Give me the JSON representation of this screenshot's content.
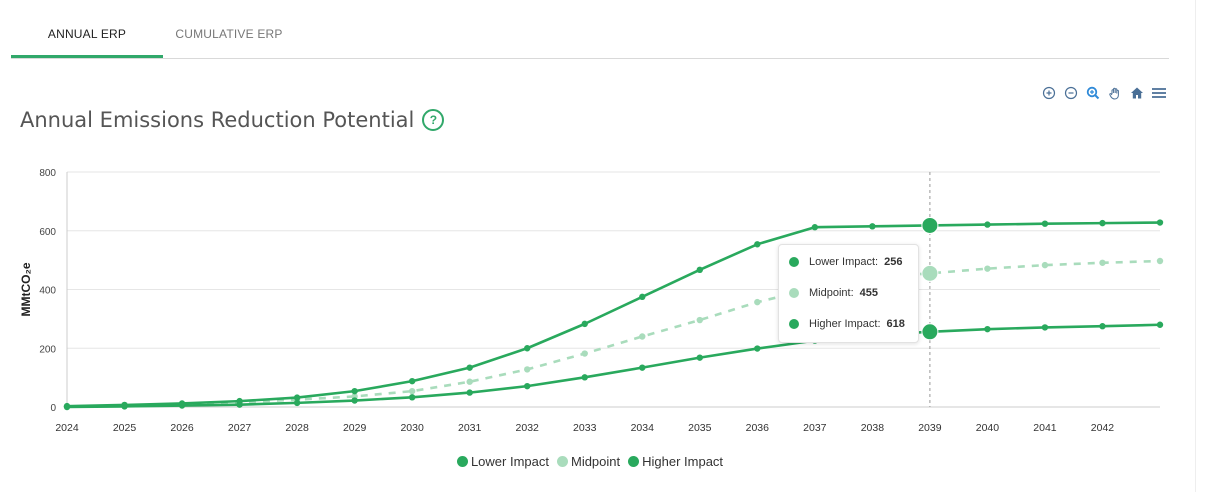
{
  "tabs": [
    {
      "label": "ANNUAL ERP",
      "active": true
    },
    {
      "label": "CUMULATIVE ERP",
      "active": false
    }
  ],
  "toolbar": [
    "zoom-in-icon",
    "zoom-out-icon",
    "selection-zoom-icon",
    "pan-hand-icon",
    "home-reset-icon",
    "menu-icon"
  ],
  "colors": {
    "lower": "#29a95d",
    "midpoint": "#a9dcbc",
    "higher": "#29a95d",
    "accent": "#31a86a",
    "grid": "#e6e6e6"
  },
  "tooltip": {
    "rows": [
      {
        "label": "Lower Impact:",
        "value": "256"
      },
      {
        "label": "Midpoint:",
        "value": "455"
      },
      {
        "label": "Higher Impact:",
        "value": "618"
      }
    ]
  },
  "chart_data": {
    "type": "line",
    "title": "Annual Emissions Reduction Potential",
    "xlabel": "",
    "ylabel": "MMtCO₂e",
    "x": [
      2024,
      2025,
      2026,
      2027,
      2028,
      2029,
      2030,
      2031,
      2032,
      2033,
      2034,
      2035,
      2036,
      2037,
      2038,
      2039,
      2040,
      2041,
      2042,
      2043
    ],
    "x_tick_labels": [
      "2024",
      "2025",
      "2026",
      "2027",
      "2028",
      "2029",
      "2030",
      "2031",
      "2032",
      "2033",
      "2034",
      "2035",
      "2036",
      "2037",
      "2038",
      "2039",
      "2040",
      "2041",
      "2042"
    ],
    "y_ticks": [
      0,
      200,
      400,
      600,
      800
    ],
    "ylim": [
      0,
      800
    ],
    "grid": true,
    "legend": "bottom-center",
    "series": [
      {
        "name": "Lower Impact",
        "style": "solid",
        "values": [
          0,
          2,
          5,
          8,
          14,
          22,
          33,
          49,
          71,
          101,
          134,
          168,
          199,
          226,
          245,
          256,
          265,
          271,
          275,
          280
        ]
      },
      {
        "name": "Midpoint",
        "style": "dashed",
        "values": [
          1,
          5,
          10,
          16,
          25,
          36,
          54,
          86,
          128,
          182,
          240,
          296,
          357,
          404,
          440,
          455,
          471,
          483,
          491,
          497
        ]
      },
      {
        "name": "Higher Impact",
        "style": "solid",
        "values": [
          3,
          7,
          12,
          20,
          32,
          54,
          88,
          134,
          200,
          283,
          375,
          467,
          554,
          612,
          615,
          618,
          621,
          624,
          626,
          628
        ]
      }
    ],
    "highlight_x": 2039
  }
}
